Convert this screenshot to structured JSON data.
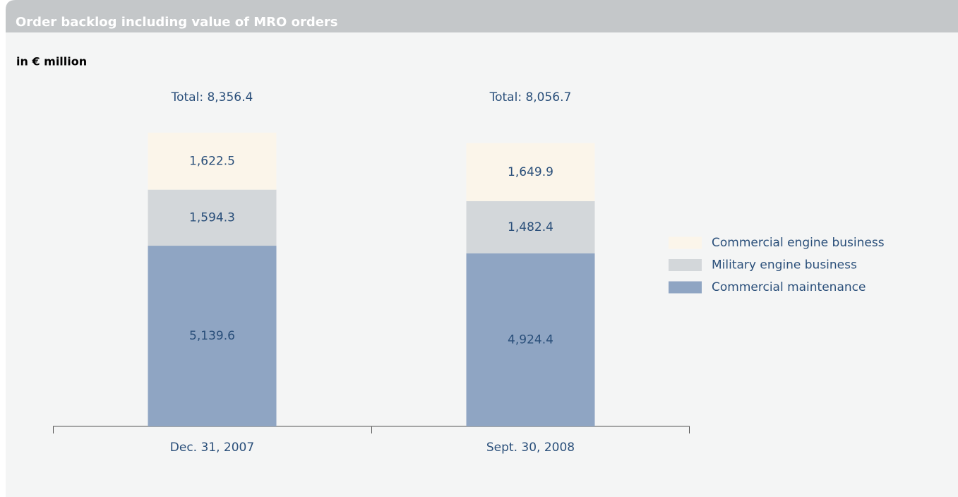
{
  "chart_data": {
    "type": "stacked_bar",
    "title": "Order backlog including value of MRO orders",
    "subtitle": "in € million",
    "categories": [
      "Dec. 31, 2007",
      "Sept. 30, 2008"
    ],
    "series": [
      {
        "name": "Commercial maintenance",
        "color": "#8fa5c3",
        "values": [
          5139.6,
          4924.4
        ],
        "value_labels": [
          "5,139.6",
          "4,924.4"
        ]
      },
      {
        "name": "Military engine business",
        "color": "#d3d7da",
        "values": [
          1594.3,
          1482.4
        ],
        "value_labels": [
          "1,594.3",
          "1,482.4"
        ]
      },
      {
        "name": "Commercial engine business",
        "color": "#fbf5ea",
        "values": [
          1622.5,
          1649.9
        ],
        "value_labels": [
          "1,622.5",
          "1,649.9"
        ]
      }
    ],
    "total_labels": [
      "Total: 8,356.4",
      "Total: 8,056.7"
    ],
    "ylim": [
      0,
      10000
    ],
    "legend": "right"
  }
}
